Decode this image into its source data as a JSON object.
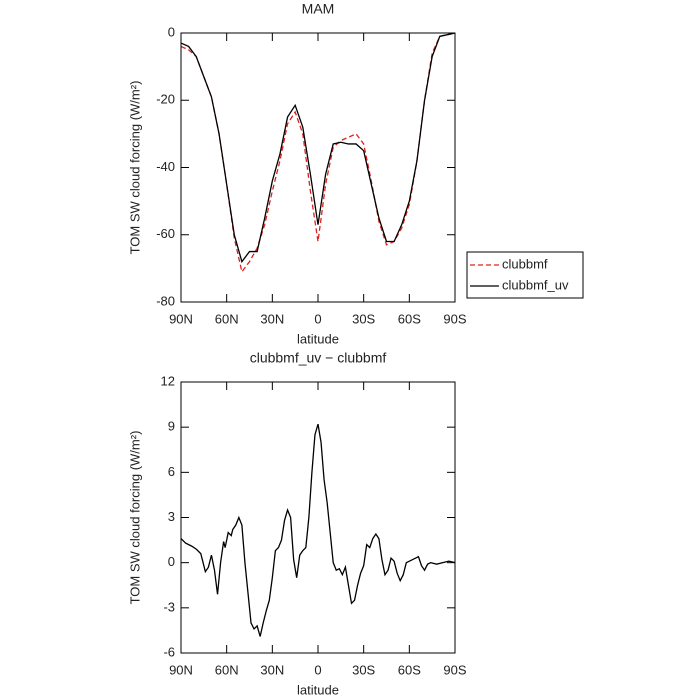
{
  "chart_data": [
    {
      "type": "line",
      "title": "MAM",
      "x_label": "latitude",
      "y_label": "TOM SW cloud forcing (W/m²)",
      "x": [
        90,
        85,
        80,
        75,
        70,
        65,
        60,
        55,
        50,
        45,
        40,
        35,
        30,
        25,
        20,
        15,
        10,
        5,
        0,
        -5,
        -10,
        -15,
        -20,
        -25,
        -30,
        -35,
        -40,
        -45,
        -50,
        -55,
        -60,
        -65,
        -70,
        -75,
        -80,
        -85,
        -90
      ],
      "series": [
        {
          "name": "clubbmf",
          "color": "#e0201c",
          "line_style": "dashed",
          "values": [
            -4,
            -5,
            -7,
            -13,
            -19,
            -30,
            -45,
            -61,
            -71,
            -68,
            -64,
            -57,
            -47,
            -38,
            -27,
            -23.5,
            -30,
            -47,
            -62,
            -45,
            -34,
            -32,
            -31,
            -30,
            -33,
            -44,
            -56,
            -63,
            -62,
            -58,
            -51,
            -38,
            -20,
            -6,
            -1,
            -0.5,
            0
          ]
        },
        {
          "name": "clubbmf_uv",
          "color": "#000000",
          "line_style": "solid",
          "values": [
            -3,
            -4,
            -7,
            -13,
            -19,
            -30,
            -45,
            -60,
            -68,
            -65,
            -65,
            -55,
            -44,
            -36,
            -25,
            -21.5,
            -28,
            -42,
            -57,
            -42,
            -33,
            -32.5,
            -33,
            -33,
            -35,
            -45,
            -55,
            -62,
            -62,
            -57,
            -50,
            -38,
            -20,
            -7,
            -1,
            -0.5,
            0
          ]
        }
      ],
      "xlim": [
        90,
        -90
      ],
      "xticks": [
        {
          "value": 90,
          "label": "90N"
        },
        {
          "value": 60,
          "label": "60N"
        },
        {
          "value": 30,
          "label": "30N"
        },
        0,
        {
          "value": -30,
          "label": "30S"
        },
        {
          "value": -60,
          "label": "60S"
        },
        {
          "value": -90,
          "label": "90S"
        }
      ],
      "ylim": [
        -80,
        0
      ],
      "yticks": [
        0,
        -20,
        -40,
        -60,
        -80
      ],
      "legend": "right"
    },
    {
      "type": "line",
      "title": "clubbmf_uv − clubbmf",
      "x_label": "latitude",
      "y_label": "TOM SW cloud forcing (W/m²)",
      "x": [
        90,
        87,
        83,
        80,
        77,
        74,
        72,
        70,
        68,
        66,
        64,
        62,
        61,
        59,
        57,
        56,
        54,
        52,
        50,
        48,
        46,
        44,
        42,
        40,
        38,
        36,
        34,
        32,
        30,
        28,
        26,
        24,
        22,
        20,
        18,
        16,
        14,
        12,
        10,
        8,
        6,
        4,
        2,
        0,
        -2,
        -4,
        -6,
        -8,
        -10,
        -12,
        -14,
        -16,
        -18,
        -20,
        -22,
        -24,
        -26,
        -28,
        -30,
        -32,
        -34,
        -36,
        -38,
        -40,
        -42,
        -44,
        -46,
        -48,
        -50,
        -52,
        -54,
        -56,
        -58,
        -60,
        -62,
        -64,
        -66,
        -68,
        -70,
        -72,
        -74,
        -78,
        -82,
        -86,
        -90
      ],
      "values": [
        1.6,
        1.3,
        1.1,
        0.9,
        0.6,
        -0.6,
        -0.3,
        0.5,
        -0.5,
        -2.1,
        0,
        1.4,
        1.0,
        2.0,
        1.8,
        2.2,
        2.5,
        3.0,
        2.5,
        0,
        -2.0,
        -4.0,
        -4.4,
        -4.2,
        -4.9,
        -4.0,
        -3.2,
        -2.5,
        -1.0,
        0.8,
        1.0,
        1.5,
        2.8,
        3.5,
        3.0,
        0.2,
        -1.0,
        0.5,
        0.8,
        1.0,
        3.0,
        6.0,
        8.5,
        9.2,
        8.0,
        5.5,
        4.0,
        2.0,
        0,
        -0.5,
        -0.4,
        -0.8,
        -0.3,
        -1.5,
        -2.7,
        -2.5,
        -1.5,
        -0.7,
        -0.2,
        1.2,
        1.0,
        1.6,
        1.9,
        1.6,
        0.2,
        -0.8,
        -0.5,
        0.3,
        0.1,
        -0.7,
        -1.2,
        -0.8,
        0,
        0.1,
        0.2,
        0.3,
        0.4,
        -0.2,
        -0.5,
        -0.1,
        0,
        -0.1,
        0,
        0.1,
        0
      ],
      "color": "#000000",
      "xlim": [
        90,
        -90
      ],
      "xticks": [
        {
          "value": 90,
          "label": "90N"
        },
        {
          "value": 60,
          "label": "60N"
        },
        {
          "value": 30,
          "label": "30N"
        },
        0,
        {
          "value": -30,
          "label": "30S"
        },
        {
          "value": -60,
          "label": "60S"
        },
        {
          "value": -90,
          "label": "90S"
        }
      ],
      "ylim": [
        -6,
        12
      ],
      "yticks": [
        12,
        9,
        6,
        3,
        0,
        -3,
        -6
      ]
    }
  ]
}
